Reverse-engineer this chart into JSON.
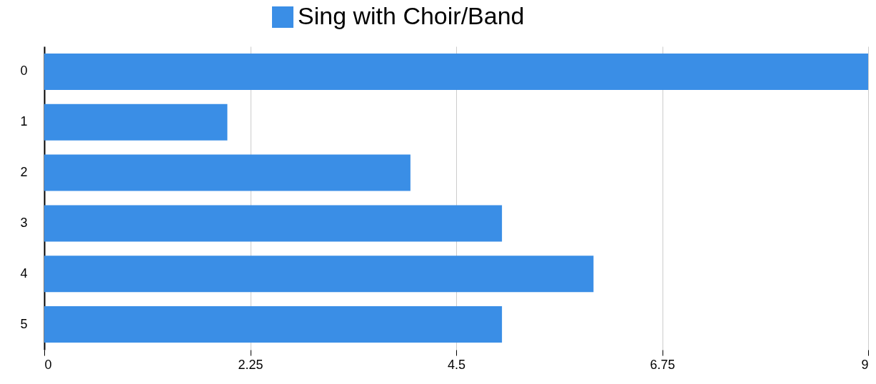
{
  "chart_data": {
    "type": "bar",
    "orientation": "horizontal",
    "categories": [
      "0",
      "1",
      "2",
      "3",
      "4",
      "5"
    ],
    "series": [
      {
        "name": "Sing with Choir/Band",
        "color": "#3a8ee6",
        "values": [
          9,
          2,
          4,
          5,
          6,
          5
        ]
      }
    ],
    "xlim": [
      0,
      9
    ],
    "xticks": [
      0,
      2.25,
      4.5,
      6.75,
      9
    ],
    "grid": "x",
    "legend": "top"
  }
}
